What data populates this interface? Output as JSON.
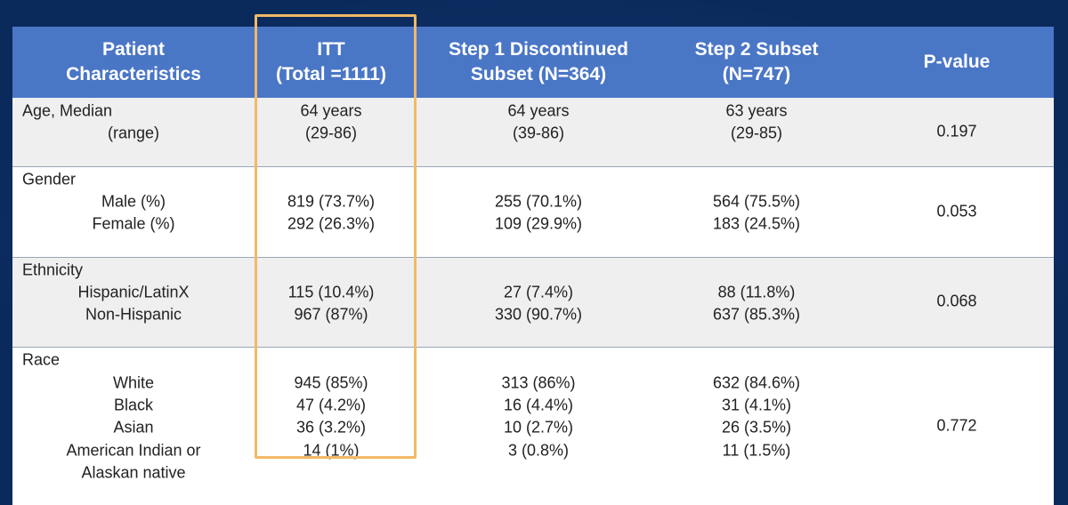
{
  "table": {
    "header": [
      [
        "Patient",
        "Characteristics"
      ],
      [
        "ITT",
        "(Total =1111)"
      ],
      [
        "Step 1 Discontinued",
        "Subset (N=364)"
      ],
      [
        "Step 2 Subset",
        "(N=747)"
      ],
      [
        "P-value"
      ]
    ],
    "rows": [
      {
        "lines": [
          [
            "Age, Median",
            "64 years",
            "64 years",
            "63 years"
          ],
          [
            "(range)",
            "(29-86)",
            "(39-86)",
            "(29-85)"
          ]
        ],
        "p_value": "0.197"
      },
      {
        "lines": [
          [
            "Gender"
          ],
          [
            "Male (%)",
            "819 (73.7%)",
            "255 (70.1%)",
            "564 (75.5%)"
          ],
          [
            "Female (%)",
            "292 (26.3%)",
            "109 (29.9%)",
            "183 (24.5%)"
          ]
        ],
        "p_value": "0.053"
      },
      {
        "lines": [
          [
            "Ethnicity"
          ],
          [
            "Hispanic/LatinX",
            "115 (10.4%)",
            "27 (7.4%)",
            "88 (11.8%)"
          ],
          [
            "Non-Hispanic",
            "967 (87%)",
            "330 (90.7%)",
            "637 (85.3%)"
          ]
        ],
        "p_value": "0.068"
      },
      {
        "lines": [
          [
            "Race"
          ],
          [
            "White",
            "945 (85%)",
            "313 (86%)",
            "632 (84.6%)"
          ],
          [
            "Black",
            "47 (4.2%)",
            "16 (4.4%)",
            "31 (4.1%)"
          ],
          [
            "Asian",
            "36 (3.2%)",
            "10 (2.7%)",
            "26 (3.5%)"
          ],
          [
            "American Indian or",
            "14 (1%)",
            "3 (0.8%)",
            "11 (1.5%)"
          ],
          [
            "Alaskan native"
          ]
        ],
        "p_value": "0.772"
      }
    ]
  }
}
